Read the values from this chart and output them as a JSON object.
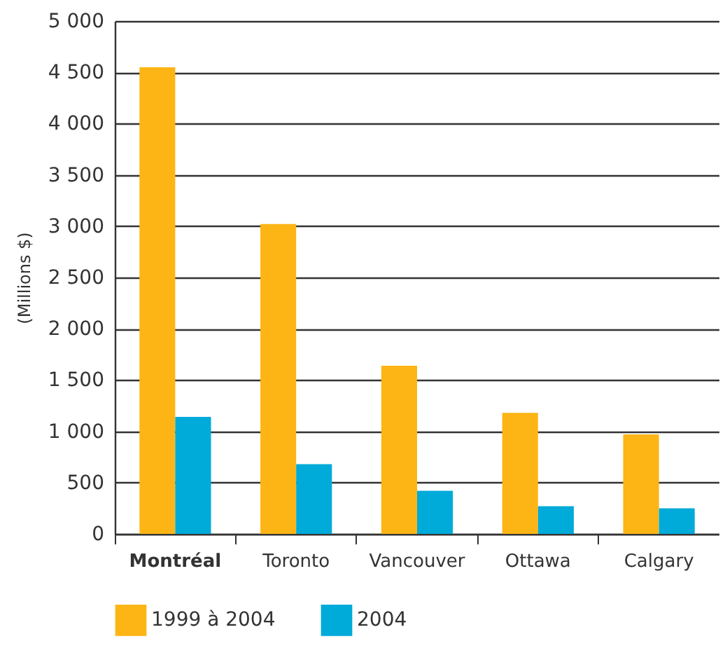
{
  "chart_data": {
    "type": "bar",
    "ylabel": "(Millions $)",
    "categories": [
      "Montréal",
      "Toronto",
      "Vancouver",
      "Ottawa",
      "Calgary"
    ],
    "series": [
      {
        "name": "1999 à 2004",
        "color": "#fdb515",
        "values": [
          4550,
          3020,
          1640,
          1180,
          970
        ]
      },
      {
        "name": "2004",
        "color": "#00aad9",
        "values": [
          1140,
          680,
          420,
          270,
          250
        ]
      }
    ],
    "ylim": [
      0,
      5000
    ],
    "yticks": [
      0,
      500,
      {
        "value": 1000,
        "label": "1 000"
      },
      {
        "value": 1500,
        "label": "1 500"
      },
      {
        "value": 2000,
        "label": "2 000"
      },
      {
        "value": 2500,
        "label": "2 500"
      },
      {
        "value": 3000,
        "label": "3 000"
      },
      {
        "value": 3500,
        "label": "3 500"
      },
      {
        "value": 4000,
        "label": "4 000"
      },
      {
        "value": 4500,
        "label": "4 500"
      },
      {
        "value": 5000,
        "label": "5 000"
      }
    ],
    "grid": "y",
    "legend": "bottom"
  }
}
